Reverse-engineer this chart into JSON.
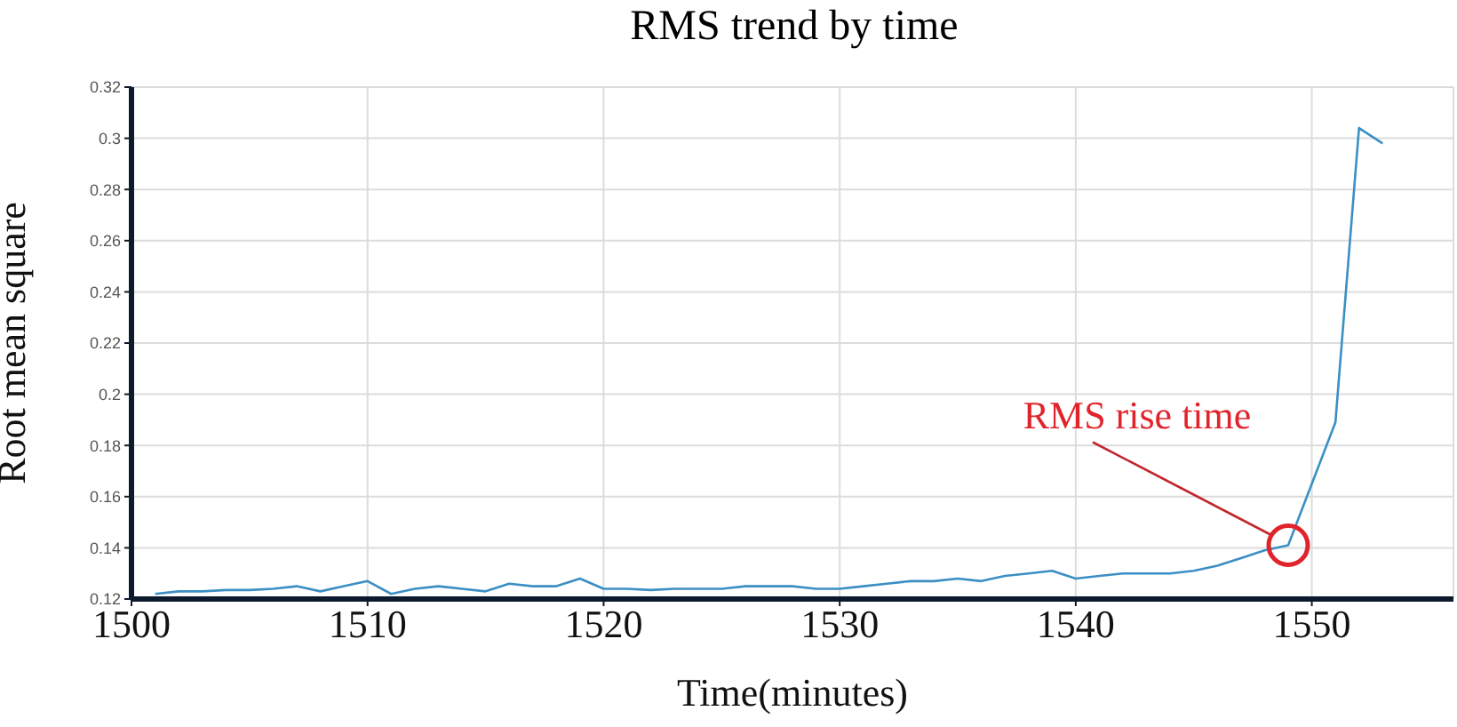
{
  "chart_data": {
    "type": "line",
    "title": "RMS trend by time",
    "xlabel": "Time(minutes)",
    "ylabel": "Root mean square",
    "x": [
      1501,
      1502,
      1503,
      1504,
      1505,
      1506,
      1507,
      1508,
      1509,
      1510,
      1511,
      1512,
      1513,
      1514,
      1515,
      1516,
      1517,
      1518,
      1519,
      1520,
      1521,
      1522,
      1523,
      1524,
      1525,
      1526,
      1527,
      1528,
      1529,
      1530,
      1531,
      1532,
      1533,
      1534,
      1535,
      1536,
      1537,
      1538,
      1539,
      1540,
      1541,
      1542,
      1543,
      1544,
      1545,
      1546,
      1547,
      1548,
      1549,
      1551,
      1552,
      1553
    ],
    "series": [
      {
        "color": "#3b8fc4",
        "values": [
          0.122,
          0.123,
          0.123,
          0.1235,
          0.1235,
          0.124,
          0.125,
          0.123,
          0.125,
          0.127,
          0.122,
          0.124,
          0.125,
          0.124,
          0.123,
          0.126,
          0.125,
          0.125,
          0.128,
          0.124,
          0.124,
          0.1235,
          0.124,
          0.124,
          0.124,
          0.125,
          0.125,
          0.125,
          0.124,
          0.124,
          0.125,
          0.126,
          0.127,
          0.127,
          0.128,
          0.127,
          0.129,
          0.13,
          0.131,
          0.128,
          0.129,
          0.13,
          0.13,
          0.13,
          0.131,
          0.133,
          0.136,
          0.139,
          0.141,
          0.189,
          0.304,
          0.298
        ]
      }
    ],
    "xlim": [
      1500,
      1556
    ],
    "xticks": [
      1500,
      1510,
      1520,
      1530,
      1540,
      1550
    ],
    "ylim": [
      0.12,
      0.32
    ],
    "yticks": [
      0.12,
      0.14,
      0.16,
      0.18,
      0.2,
      0.22,
      0.24,
      0.26,
      0.28,
      0.3,
      0.32
    ],
    "grid": true,
    "legend": false,
    "marker": "none",
    "line_style": "solid",
    "annotations": [
      {
        "text": "RMS rise time",
        "x": 1549,
        "y": 0.141
      }
    ]
  }
}
